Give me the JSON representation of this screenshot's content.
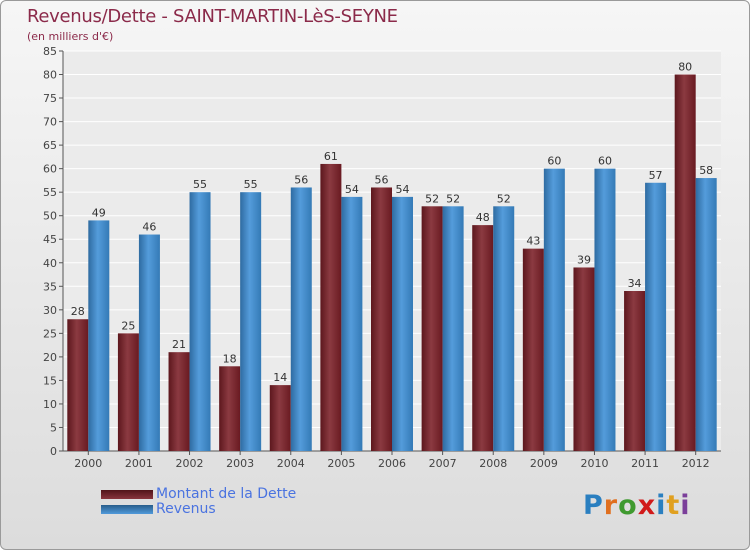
{
  "header": {
    "title": "Revenus/Dette - SAINT-MARTIN-LèS-SEYNE",
    "subtitle": "(en milliers d'€)"
  },
  "chart_data": {
    "type": "bar",
    "title": "Revenus/Dette - SAINT-MARTIN-LèS-SEYNE",
    "subtitle": "(en milliers d'€)",
    "categories": [
      "2000",
      "2001",
      "2002",
      "2003",
      "2004",
      "2005",
      "2006",
      "2007",
      "2008",
      "2009",
      "2010",
      "2011",
      "2012"
    ],
    "series": [
      {
        "name": "Montant de la Dette",
        "color": "#7b1f27",
        "values": [
          28,
          25,
          21,
          18,
          14,
          61,
          56,
          52,
          48,
          43,
          39,
          34,
          80
        ]
      },
      {
        "name": "Revenus",
        "color": "#3d8fd6",
        "values": [
          49,
          46,
          55,
          55,
          56,
          54,
          54,
          52,
          52,
          60,
          60,
          57,
          58
        ]
      }
    ],
    "ylim": [
      0,
      85
    ],
    "yticks": [
      0,
      5,
      10,
      15,
      20,
      25,
      30,
      35,
      40,
      45,
      50,
      55,
      60,
      65,
      70,
      75,
      80,
      85
    ],
    "grid": true,
    "legend": "bottom-left"
  },
  "legend": [
    {
      "label": "Montant de la Dette",
      "color": "#7b1f27"
    },
    {
      "label": "Revenus",
      "color": "#3d8fd6"
    }
  ],
  "logo": {
    "text": "Proxiti",
    "letter_colors": [
      "#2a7fc0",
      "#e06f1e",
      "#3f9a2f",
      "#d11a1a",
      "#2a7fc0",
      "#e0a020",
      "#7b3f9a"
    ]
  }
}
